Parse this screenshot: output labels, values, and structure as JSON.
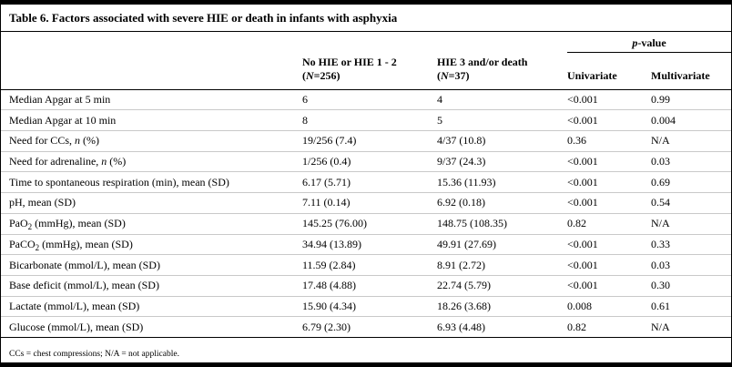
{
  "title": "Table 6. Factors associated with severe HIE or death in infants with asphyxia",
  "header": {
    "p_value": {
      "italic": "p",
      "rest": "-value"
    },
    "col_no_hie": {
      "line1": "No HIE or HIE 1 - 2",
      "line2": [
        {
          "t": "("
        },
        {
          "t": "N",
          "i": true
        },
        {
          "t": "=256)"
        }
      ]
    },
    "col_hie3": {
      "line1": "HIE 3 and/or death",
      "line2": [
        {
          "t": "("
        },
        {
          "t": "N",
          "i": true
        },
        {
          "t": "=37)"
        }
      ]
    },
    "univariate": "Univariate",
    "multivariate": "Multivariate"
  },
  "rows": [
    {
      "label": [
        {
          "t": "Median Apgar at 5 min"
        }
      ],
      "values": [
        "6",
        "4",
        "<0.001",
        "0.99"
      ]
    },
    {
      "label": [
        {
          "t": "Median Apgar at 10 min"
        }
      ],
      "values": [
        "8",
        "5",
        "<0.001",
        "0.004"
      ]
    },
    {
      "label": [
        {
          "t": "Need for CCs, "
        },
        {
          "t": "n",
          "i": true
        },
        {
          "t": " (%)"
        }
      ],
      "values": [
        "19/256 (7.4)",
        "4/37 (10.8)",
        "0.36",
        "N/A"
      ]
    },
    {
      "label": [
        {
          "t": "Need for adrenaline, "
        },
        {
          "t": "n",
          "i": true
        },
        {
          "t": " (%)"
        }
      ],
      "values": [
        "1/256 (0.4)",
        "9/37 (24.3)",
        "<0.001",
        "0.03"
      ]
    },
    {
      "label": [
        {
          "t": "Time to spontaneous respiration (min), mean (SD)"
        }
      ],
      "values": [
        "6.17 (5.71)",
        "15.36 (11.93)",
        "<0.001",
        "0.69"
      ]
    },
    {
      "label": [
        {
          "t": "pH, mean (SD)"
        }
      ],
      "values": [
        "7.11 (0.14)",
        "6.92 (0.18)",
        "<0.001",
        "0.54"
      ]
    },
    {
      "label": [
        {
          "t": "PaO"
        },
        {
          "t": "2",
          "sub": true
        },
        {
          "t": " (mmHg), mean (SD)"
        }
      ],
      "values": [
        "145.25 (76.00)",
        "148.75 (108.35)",
        "0.82",
        "N/A"
      ]
    },
    {
      "label": [
        {
          "t": "PaCO"
        },
        {
          "t": "2",
          "sub": true
        },
        {
          "t": " (mmHg), mean (SD)"
        }
      ],
      "values": [
        "34.94 (13.89)",
        "49.91 (27.69)",
        "<0.001",
        "0.33"
      ]
    },
    {
      "label": [
        {
          "t": "Bicarbonate (mmol/L), mean (SD)"
        }
      ],
      "values": [
        "11.59 (2.84)",
        "8.91 (2.72)",
        "<0.001",
        "0.03"
      ]
    },
    {
      "label": [
        {
          "t": "Base deficit (mmol/L), mean (SD)"
        }
      ],
      "values": [
        "17.48 (4.88)",
        "22.74 (5.79)",
        "<0.001",
        "0.30"
      ]
    },
    {
      "label": [
        {
          "t": "Lactate (mmol/L), mean (SD)"
        }
      ],
      "values": [
        "15.90 (4.34)",
        "18.26 (3.68)",
        "0.008",
        "0.61"
      ]
    },
    {
      "label": [
        {
          "t": "Glucose (mmol/L), mean (SD)"
        }
      ],
      "values": [
        "6.79 (2.30)",
        "6.93 (4.48)",
        "0.82",
        "N/A"
      ]
    }
  ],
  "footnote": "CCs = chest compressions; N/A = not applicable."
}
